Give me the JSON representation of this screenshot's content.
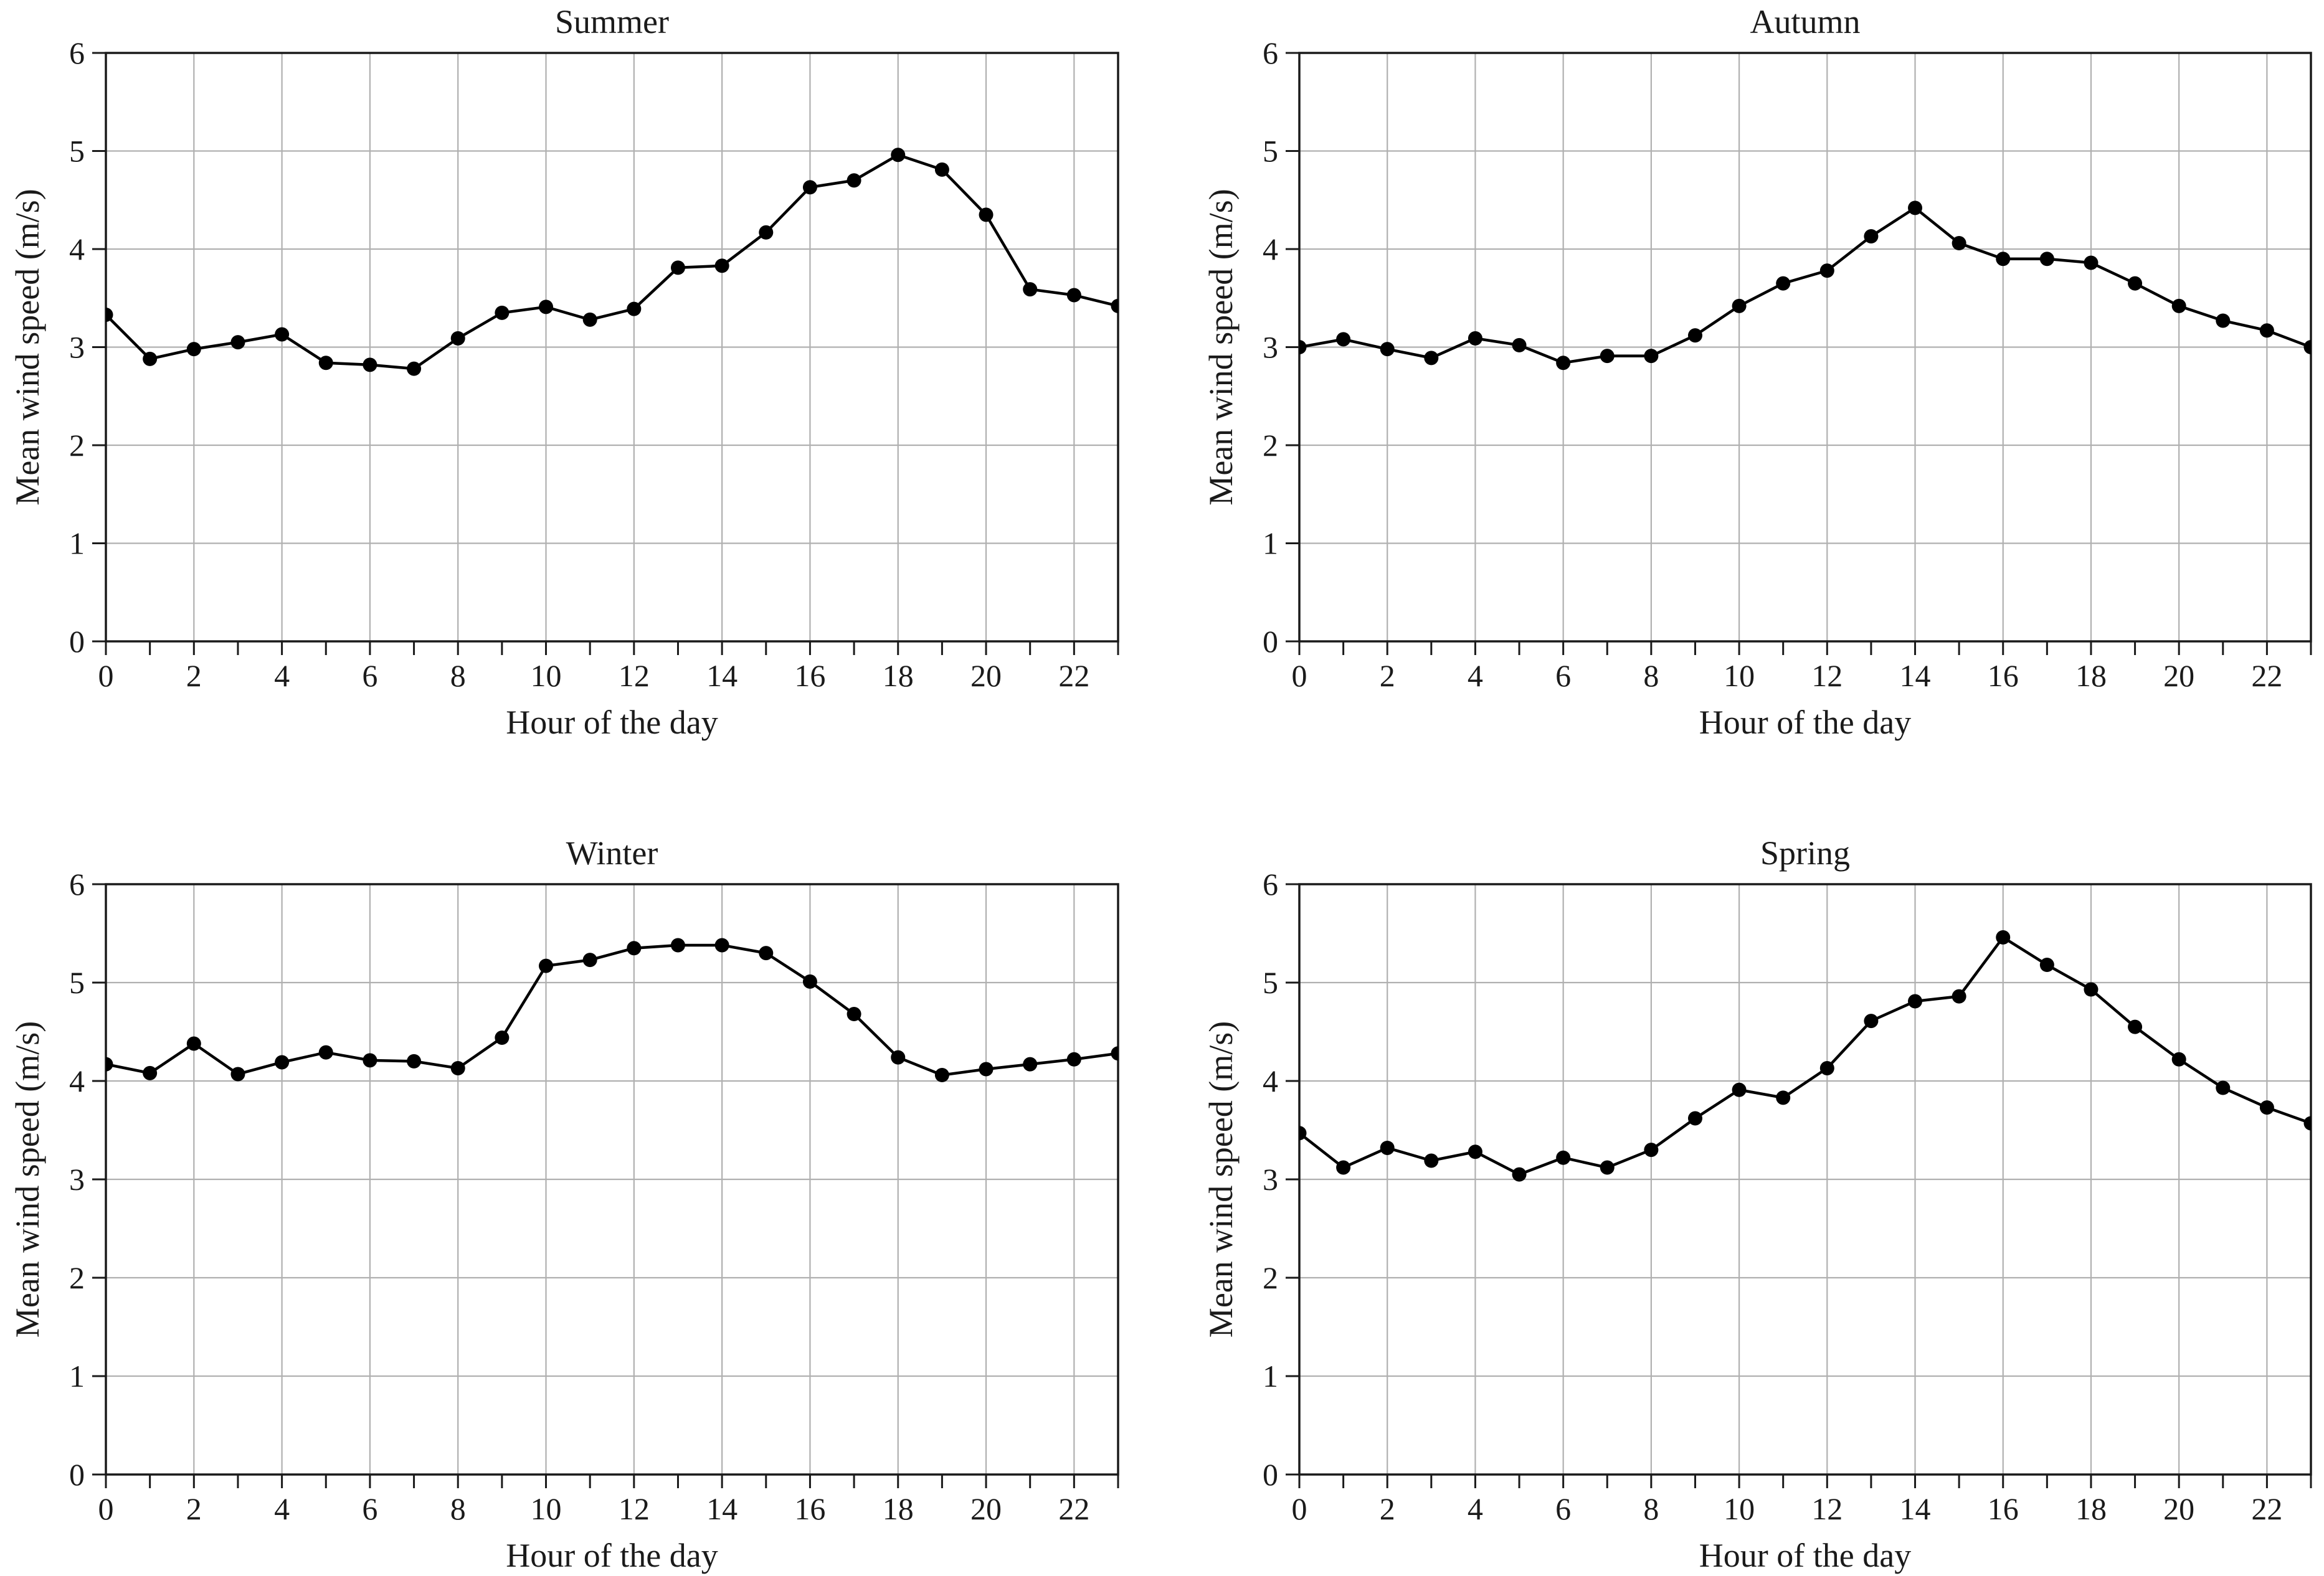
{
  "figure": {
    "background": "#ffffff",
    "text_color": "#1a1a1a",
    "axis_color": "#1a1a1a",
    "grid_color": "#b0b0b0",
    "line_color": "#000000",
    "marker_color": "#000000",
    "marker": "circle"
  },
  "chart_data": [
    {
      "type": "line",
      "title": "Summer",
      "xlabel": "Hour of the day",
      "ylabel": "Mean wind speed (m/s)",
      "x": [
        0,
        1,
        2,
        3,
        4,
        5,
        6,
        7,
        8,
        9,
        10,
        11,
        12,
        13,
        14,
        15,
        16,
        17,
        18,
        19,
        20,
        21,
        22,
        23
      ],
      "values": [
        3.33,
        2.88,
        2.98,
        3.05,
        3.13,
        2.84,
        2.82,
        2.78,
        3.09,
        3.35,
        3.41,
        3.28,
        3.39,
        3.81,
        3.83,
        4.17,
        4.63,
        4.7,
        4.96,
        4.81,
        4.35,
        3.59,
        3.53,
        3.42
      ],
      "ylim": [
        0,
        6
      ],
      "yticks": [
        0,
        1,
        2,
        3,
        4,
        5,
        6
      ],
      "xticks": [
        0,
        2,
        4,
        6,
        8,
        10,
        12,
        14,
        16,
        18,
        20,
        22
      ],
      "minor_xtick_every": 1,
      "grid": true,
      "legend": "none"
    },
    {
      "type": "line",
      "title": "Autumn",
      "xlabel": "Hour of the day",
      "ylabel": "Mean wind speed (m/s)",
      "x": [
        0,
        1,
        2,
        3,
        4,
        5,
        6,
        7,
        8,
        9,
        10,
        11,
        12,
        13,
        14,
        15,
        16,
        17,
        18,
        19,
        20,
        21,
        22,
        23
      ],
      "values": [
        3.0,
        3.08,
        2.98,
        2.89,
        3.09,
        3.02,
        2.84,
        2.91,
        2.91,
        3.12,
        3.42,
        3.65,
        3.78,
        4.13,
        4.42,
        4.06,
        3.9,
        3.9,
        3.86,
        3.65,
        3.42,
        3.27,
        3.17,
        3.0
      ],
      "ylim": [
        0,
        6
      ],
      "yticks": [
        0,
        1,
        2,
        3,
        4,
        5,
        6
      ],
      "xticks": [
        0,
        2,
        4,
        6,
        8,
        10,
        12,
        14,
        16,
        18,
        20,
        22
      ],
      "minor_xtick_every": 1,
      "grid": true,
      "legend": "none"
    },
    {
      "type": "line",
      "title": "Winter",
      "xlabel": "Hour of the day",
      "ylabel": "Mean wind speed (m/s)",
      "x": [
        0,
        1,
        2,
        3,
        4,
        5,
        6,
        7,
        8,
        9,
        10,
        11,
        12,
        13,
        14,
        15,
        16,
        17,
        18,
        19,
        20,
        21,
        22,
        23
      ],
      "values": [
        4.17,
        4.08,
        4.38,
        4.07,
        4.19,
        4.29,
        4.21,
        4.2,
        4.13,
        4.44,
        5.17,
        5.23,
        5.35,
        5.38,
        5.38,
        5.3,
        5.01,
        4.68,
        4.24,
        4.06,
        4.12,
        4.17,
        4.22,
        4.28
      ],
      "ylim": [
        0,
        6
      ],
      "yticks": [
        0,
        1,
        2,
        3,
        4,
        5,
        6
      ],
      "xticks": [
        0,
        2,
        4,
        6,
        8,
        10,
        12,
        14,
        16,
        18,
        20,
        22
      ],
      "minor_xtick_every": 1,
      "grid": true,
      "legend": "none"
    },
    {
      "type": "line",
      "title": "Spring",
      "xlabel": "Hour of the day",
      "ylabel": "Mean wind speed (m/s)",
      "x": [
        0,
        1,
        2,
        3,
        4,
        5,
        6,
        7,
        8,
        9,
        10,
        11,
        12,
        13,
        14,
        15,
        16,
        17,
        18,
        19,
        20,
        21,
        22,
        23
      ],
      "values": [
        3.47,
        3.12,
        3.32,
        3.19,
        3.28,
        3.05,
        3.22,
        3.12,
        3.3,
        3.62,
        3.91,
        3.83,
        4.13,
        4.61,
        4.81,
        4.86,
        5.46,
        5.18,
        4.93,
        4.55,
        4.22,
        3.93,
        3.73,
        3.57
      ],
      "ylim": [
        0,
        6
      ],
      "yticks": [
        0,
        1,
        2,
        3,
        4,
        5,
        6
      ],
      "xticks": [
        0,
        2,
        4,
        6,
        8,
        10,
        12,
        14,
        16,
        18,
        20,
        22
      ],
      "minor_xtick_every": 1,
      "grid": true,
      "legend": "none"
    }
  ]
}
